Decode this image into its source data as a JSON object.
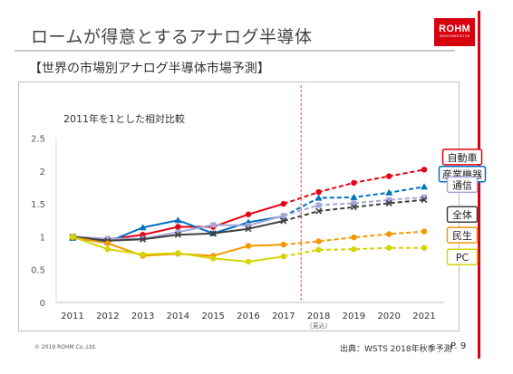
{
  "slide": {
    "title": "ロームが得意とするアナログ半導体",
    "subtitle": "【世界の市場別アナログ半導体市場予測】",
    "note": "2011年を1とした相対比較",
    "logo_text": "ROHM",
    "logo_subtext": "SEMICONDUCTOR",
    "copyright": "© 2019 ROHM Co.,Ltd.",
    "source": "出典：WSTS 2018年秋季予測",
    "page": "P. 9"
  },
  "chart_data": {
    "type": "line",
    "categories": [
      "2011",
      "2012",
      "2013",
      "2014",
      "2015",
      "2016",
      "2017",
      "2018",
      "2019",
      "2020",
      "2021"
    ],
    "category_sublabels": {
      "2018": "（見込）"
    },
    "forecast_from": "2018",
    "ylim": [
      0,
      2.5
    ],
    "yticks": [
      "0",
      "0.5",
      "1",
      "1.5",
      "2",
      "2.5"
    ],
    "grid": false,
    "series": [
      {
        "name": "自動車",
        "color": "#e60012",
        "marker": "circle",
        "values": [
          1.0,
          0.96,
          1.03,
          1.15,
          1.15,
          1.34,
          1.5,
          1.68,
          1.82,
          1.92,
          2.02
        ]
      },
      {
        "name": "産業機器",
        "color": "#0070c0",
        "marker": "triangle",
        "values": [
          0.98,
          0.92,
          1.14,
          1.25,
          1.05,
          1.22,
          1.31,
          1.59,
          1.6,
          1.67,
          1.76
        ]
      },
      {
        "name": "通信",
        "color": "#a6a6d9",
        "marker": "square",
        "values": [
          1.0,
          0.97,
          0.97,
          1.07,
          1.18,
          1.17,
          1.32,
          1.48,
          1.51,
          1.56,
          1.6
        ]
      },
      {
        "name": "全体",
        "color": "#404040",
        "marker": "x",
        "values": [
          1.0,
          0.94,
          0.96,
          1.03,
          1.05,
          1.12,
          1.24,
          1.39,
          1.45,
          1.51,
          1.56
        ]
      },
      {
        "name": "民生",
        "color": "#f39800",
        "marker": "circle",
        "values": [
          0.99,
          0.9,
          0.71,
          0.74,
          0.71,
          0.86,
          0.88,
          0.93,
          0.99,
          1.04,
          1.08
        ]
      },
      {
        "name": "PC",
        "color": "#d4d400",
        "marker": "circle",
        "values": [
          1.0,
          0.81,
          0.73,
          0.75,
          0.67,
          0.62,
          0.7,
          0.8,
          0.81,
          0.83,
          0.83
        ]
      }
    ]
  }
}
